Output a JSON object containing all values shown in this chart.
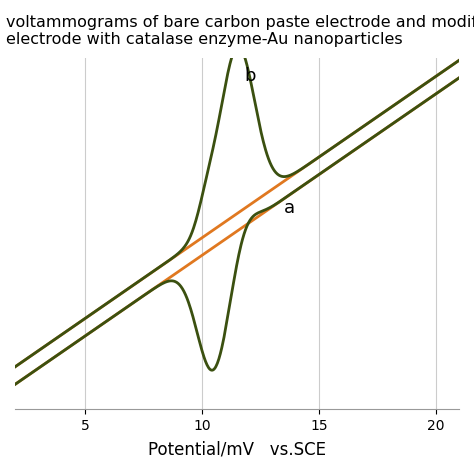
{
  "title_line1": "voltammograms of bare carbon paste electrode and modified carbon",
  "title_line2": "electrode with catalase enzyme-Au nanoparticles",
  "xlabel": "Potential/mV   vs.SCE",
  "xlim": [
    2,
    21
  ],
  "ylim": [
    -1.0,
    1.0
  ],
  "xticks": [
    5,
    10,
    15,
    20
  ],
  "color_a": "#E07820",
  "color_b": "#3B5010",
  "label_a": "a",
  "label_b": "b",
  "bg_color": "#FFFFFF",
  "grid_color": "#CCCCCC",
  "title_fontsize": 11.5,
  "axis_fontsize": 12
}
